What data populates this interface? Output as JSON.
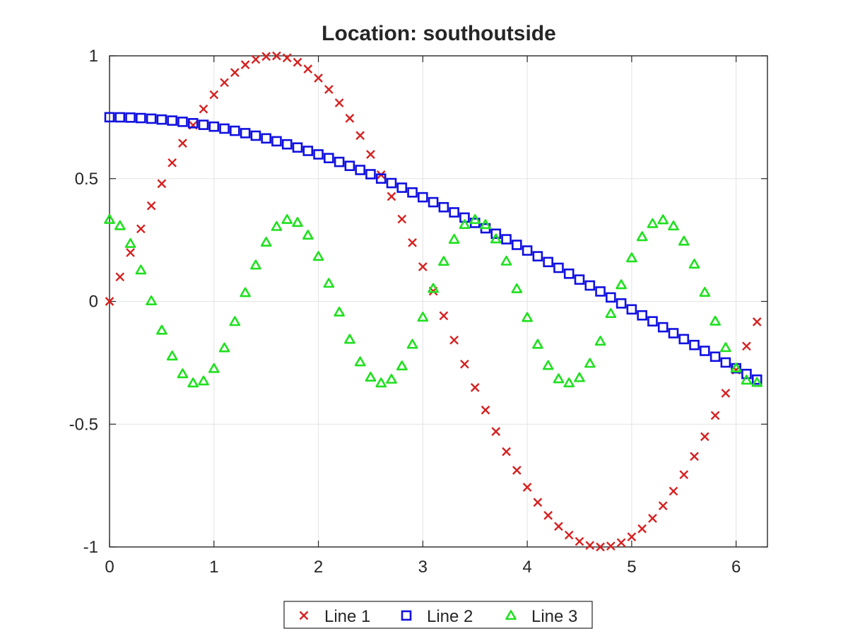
{
  "chart_data": {
    "type": "scatter",
    "title": "Location: southoutside",
    "xlabel": "",
    "ylabel": "",
    "xlim": [
      0,
      6.3
    ],
    "ylim": [
      -1,
      1
    ],
    "xticks": [
      0,
      1,
      2,
      3,
      4,
      5,
      6
    ],
    "yticks": [
      -1,
      -0.5,
      0,
      0.5,
      1
    ],
    "xtick_labels": [
      "0",
      "1",
      "2",
      "3",
      "4",
      "5",
      "6"
    ],
    "ytick_labels": [
      "-1",
      "-0.5",
      "0",
      "0.5",
      "1"
    ],
    "grid": true,
    "legend_location": "southoutside",
    "legend_orientation": "horizontal",
    "x": [
      0,
      0.1,
      0.2,
      0.3,
      0.4,
      0.5,
      0.6,
      0.7,
      0.8,
      0.9,
      1,
      1.1,
      1.2,
      1.3,
      1.4,
      1.5,
      1.6,
      1.7,
      1.8,
      1.9,
      2,
      2.1,
      2.2,
      2.3,
      2.4,
      2.5,
      2.6,
      2.7,
      2.8,
      2.9,
      3,
      3.1,
      3.2,
      3.3,
      3.4,
      3.5,
      3.6,
      3.7,
      3.8,
      3.9,
      4,
      4.1,
      4.2,
      4.3,
      4.4,
      4.5,
      4.6,
      4.7,
      4.8,
      4.9,
      5,
      5.1,
      5.2,
      5.3,
      5.4,
      5.5,
      5.6,
      5.7,
      5.8,
      5.9,
      6,
      6.1,
      6.2
    ],
    "series": [
      {
        "name": "Line 1",
        "marker": "x",
        "color": "#d62020",
        "values": [
          0,
          0.0998,
          0.1987,
          0.2955,
          0.3894,
          0.4794,
          0.5646,
          0.6442,
          0.7174,
          0.7833,
          0.8415,
          0.8912,
          0.932,
          0.9636,
          0.9854,
          0.9975,
          0.9996,
          0.9917,
          0.9738,
          0.9463,
          0.9093,
          0.8632,
          0.8085,
          0.7457,
          0.6755,
          0.5985,
          0.5155,
          0.4274,
          0.335,
          0.2392,
          0.1411,
          0.0416,
          -0.0584,
          -0.1577,
          -0.2555,
          -0.3508,
          -0.4425,
          -0.5298,
          -0.6119,
          -0.6878,
          -0.7568,
          -0.8183,
          -0.8716,
          -0.9162,
          -0.9516,
          -0.9775,
          -0.9937,
          -0.9999,
          -0.9962,
          -0.9825,
          -0.9589,
          -0.9258,
          -0.8835,
          -0.8323,
          -0.7728,
          -0.7055,
          -0.6313,
          -0.5507,
          -0.4646,
          -0.3739,
          -0.2794,
          -0.1822,
          -0.0831
        ]
      },
      {
        "name": "Line 2",
        "marker": "square",
        "color": "#1010e0",
        "values": [
          0.75,
          0.7496,
          0.7485,
          0.7466,
          0.744,
          0.7405,
          0.7363,
          0.7313,
          0.7256,
          0.719,
          0.7117,
          0.7036,
          0.6947,
          0.6851,
          0.6748,
          0.6638,
          0.6521,
          0.6397,
          0.6266,
          0.6129,
          0.5986,
          0.5836,
          0.568,
          0.5519,
          0.5352,
          0.5179,
          0.5001,
          0.4818,
          0.463,
          0.4438,
          0.4241,
          0.404,
          0.3835,
          0.3626,
          0.3413,
          0.3197,
          0.2977,
          0.2755,
          0.253,
          0.2302,
          0.2071,
          0.1838,
          0.1603,
          0.1367,
          0.1128,
          0.0888,
          0.0647,
          0.0405,
          0.0162,
          -0.0082,
          -0.0325,
          -0.0568,
          -0.0811,
          -0.1053,
          -0.1295,
          -0.1536,
          -0.1776,
          -0.2015,
          -0.2252,
          -0.2488,
          -0.2722,
          -0.2955,
          -0.3185
        ]
      },
      {
        "name": "Line 3",
        "marker": "triangle",
        "color": "#20e020",
        "values": [
          0.3333,
          0.3078,
          0.2353,
          0.1274,
          0.0019,
          -0.1178,
          -0.2227,
          -0.2951,
          -0.3326,
          -0.3244,
          -0.2737,
          -0.1895,
          -0.0824,
          0.0353,
          0.1475,
          0.2407,
          0.3047,
          0.3332,
          0.3211,
          0.2693,
          0.1828,
          0.0734,
          -0.0438,
          -0.1548,
          -0.2465,
          -0.3088,
          -0.3325,
          -0.3173,
          -0.2631,
          -0.1752,
          -0.0645,
          0.0524,
          0.1627,
          0.2524,
          0.3127,
          0.3331,
          0.3124,
          0.2541,
          0.1637,
          0.0512,
          -0.0659,
          -0.1753,
          -0.2614,
          -0.3156,
          -0.3323,
          -0.3108,
          -0.2525,
          -0.1623,
          -0.0497,
          0.0675,
          0.1769,
          0.2631,
          0.3165,
          0.3319,
          0.3068,
          0.2449,
          0.1514,
          0.0366,
          -0.0808,
          -0.1885,
          -0.2714,
          -0.3209,
          -0.3306
        ]
      }
    ]
  }
}
